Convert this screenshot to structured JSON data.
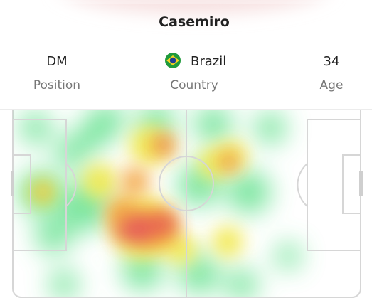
{
  "player": {
    "name": "Casemiro"
  },
  "stats": [
    {
      "value": "DM",
      "label": "Position"
    },
    {
      "value": "Brazil",
      "label": "Country"
    },
    {
      "value": 34,
      "label": "Age"
    }
  ]
}
